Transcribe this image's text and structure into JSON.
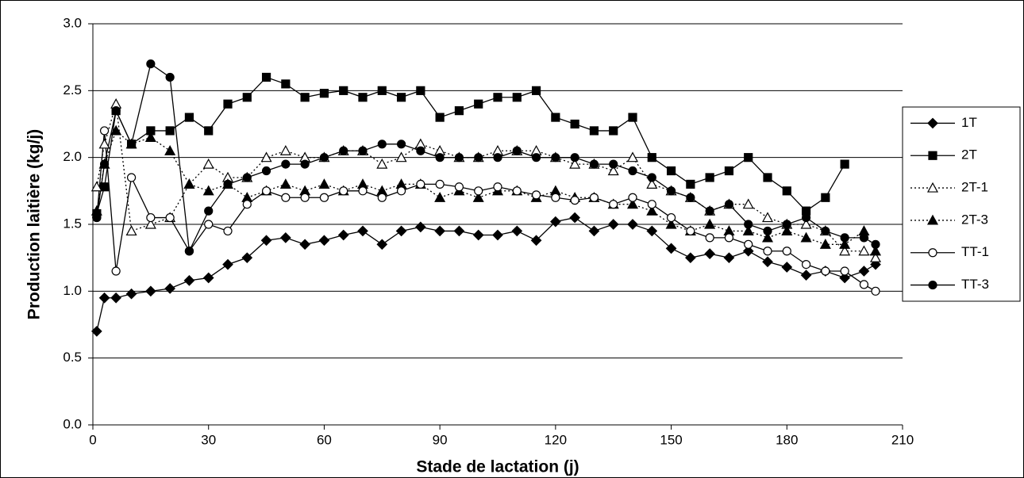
{
  "chart_data": {
    "type": "line",
    "xlabel": "Stade de lactation (j)",
    "ylabel": "Production laitière (kg/j)",
    "x": [
      1,
      3,
      6,
      10,
      15,
      20,
      25,
      30,
      35,
      40,
      45,
      50,
      55,
      60,
      65,
      70,
      75,
      80,
      85,
      90,
      95,
      100,
      105,
      110,
      115,
      120,
      125,
      130,
      135,
      140,
      145,
      150,
      155,
      160,
      165,
      170,
      175,
      180,
      185,
      190,
      195,
      200,
      203
    ],
    "series": [
      {
        "name": "1T",
        "color": "#000000",
        "marker": "diamond",
        "filled": true,
        "dash": "solid",
        "values": [
          0.7,
          0.95,
          0.95,
          0.98,
          1.0,
          1.02,
          1.08,
          1.1,
          1.2,
          1.25,
          1.38,
          1.4,
          1.35,
          1.38,
          1.42,
          1.45,
          1.35,
          1.45,
          1.48,
          1.45,
          1.45,
          1.42,
          1.42,
          1.45,
          1.38,
          1.52,
          1.55,
          1.45,
          1.5,
          1.5,
          1.45,
          1.32,
          1.25,
          1.28,
          1.25,
          1.3,
          1.22,
          1.18,
          1.12,
          1.15,
          1.1,
          1.15,
          1.2
        ]
      },
      {
        "name": "2T",
        "color": "#000000",
        "marker": "square",
        "filled": true,
        "dash": "solid",
        "values": [
          1.58,
          1.78,
          2.35,
          2.1,
          2.2,
          2.2,
          2.3,
          2.2,
          2.4,
          2.45,
          2.6,
          2.55,
          2.45,
          2.48,
          2.5,
          2.45,
          2.5,
          2.45,
          2.5,
          2.3,
          2.35,
          2.4,
          2.45,
          2.45,
          2.5,
          2.3,
          2.25,
          2.2,
          2.2,
          2.3,
          2.0,
          1.9,
          1.8,
          1.85,
          1.9,
          2.0,
          1.85,
          1.75,
          1.6,
          1.7,
          1.95,
          null,
          null
        ]
      },
      {
        "name": "2T-1",
        "color": "#000000",
        "marker": "triangle",
        "filled": false,
        "dash": "dotted",
        "values": [
          1.78,
          2.1,
          2.4,
          1.45,
          1.5,
          1.55,
          1.8,
          1.95,
          1.85,
          1.85,
          2.0,
          2.05,
          2.0,
          2.0,
          2.05,
          2.05,
          1.95,
          2.0,
          2.1,
          2.05,
          2.0,
          2.0,
          2.05,
          2.05,
          2.05,
          2.0,
          1.95,
          1.95,
          1.9,
          2.0,
          1.8,
          1.75,
          1.7,
          1.6,
          1.65,
          1.65,
          1.55,
          1.5,
          1.5,
          1.45,
          1.3,
          1.3,
          1.25
        ]
      },
      {
        "name": "2T-3",
        "color": "#000000",
        "marker": "triangle",
        "filled": true,
        "dash": "dotted",
        "values": [
          1.6,
          1.95,
          2.2,
          2.1,
          2.15,
          2.05,
          1.8,
          1.75,
          1.8,
          1.7,
          1.75,
          1.8,
          1.75,
          1.8,
          1.75,
          1.8,
          1.75,
          1.8,
          1.8,
          1.7,
          1.75,
          1.7,
          1.75,
          1.75,
          1.7,
          1.75,
          1.7,
          1.7,
          1.65,
          1.65,
          1.6,
          1.5,
          1.45,
          1.5,
          1.45,
          1.45,
          1.4,
          1.45,
          1.4,
          1.35,
          1.35,
          1.45,
          1.3
        ]
      },
      {
        "name": "TT-1",
        "color": "#000000",
        "marker": "circle",
        "filled": false,
        "dash": "solid",
        "values": [
          1.55,
          2.2,
          1.15,
          1.85,
          1.55,
          1.55,
          1.3,
          1.5,
          1.45,
          1.65,
          1.75,
          1.7,
          1.7,
          1.7,
          1.75,
          1.75,
          1.7,
          1.75,
          1.8,
          1.8,
          1.78,
          1.75,
          1.78,
          1.75,
          1.72,
          1.7,
          1.68,
          1.7,
          1.65,
          1.7,
          1.65,
          1.55,
          1.45,
          1.4,
          1.4,
          1.35,
          1.3,
          1.3,
          1.2,
          1.15,
          1.15,
          1.05,
          1.0
        ]
      },
      {
        "name": "TT-3",
        "color": "#000000",
        "marker": "circle",
        "filled": true,
        "dash": "solid",
        "values": [
          1.55,
          1.95,
          2.35,
          2.1,
          2.7,
          2.6,
          1.3,
          1.6,
          1.8,
          1.85,
          1.9,
          1.95,
          1.95,
          2.0,
          2.05,
          2.05,
          2.1,
          2.1,
          2.05,
          2.0,
          2.0,
          2.0,
          2.0,
          2.05,
          2.0,
          2.0,
          2.0,
          1.95,
          1.95,
          1.9,
          1.85,
          1.75,
          1.7,
          1.6,
          1.65,
          1.5,
          1.45,
          1.5,
          1.55,
          1.45,
          1.4,
          1.4,
          1.35
        ]
      }
    ],
    "xlim": [
      0,
      210
    ],
    "xticks": [
      0,
      30,
      60,
      90,
      120,
      150,
      180,
      210
    ],
    "ylim": [
      0,
      3
    ],
    "yticks": [
      {
        "value": 0,
        "label": "0.0"
      },
      0.5,
      {
        "value": 1,
        "label": "1.0"
      },
      1.5,
      {
        "value": 2,
        "label": "2.0"
      },
      2.5,
      {
        "value": 3,
        "label": "3.0"
      }
    ],
    "grid": true,
    "legend": "right"
  }
}
